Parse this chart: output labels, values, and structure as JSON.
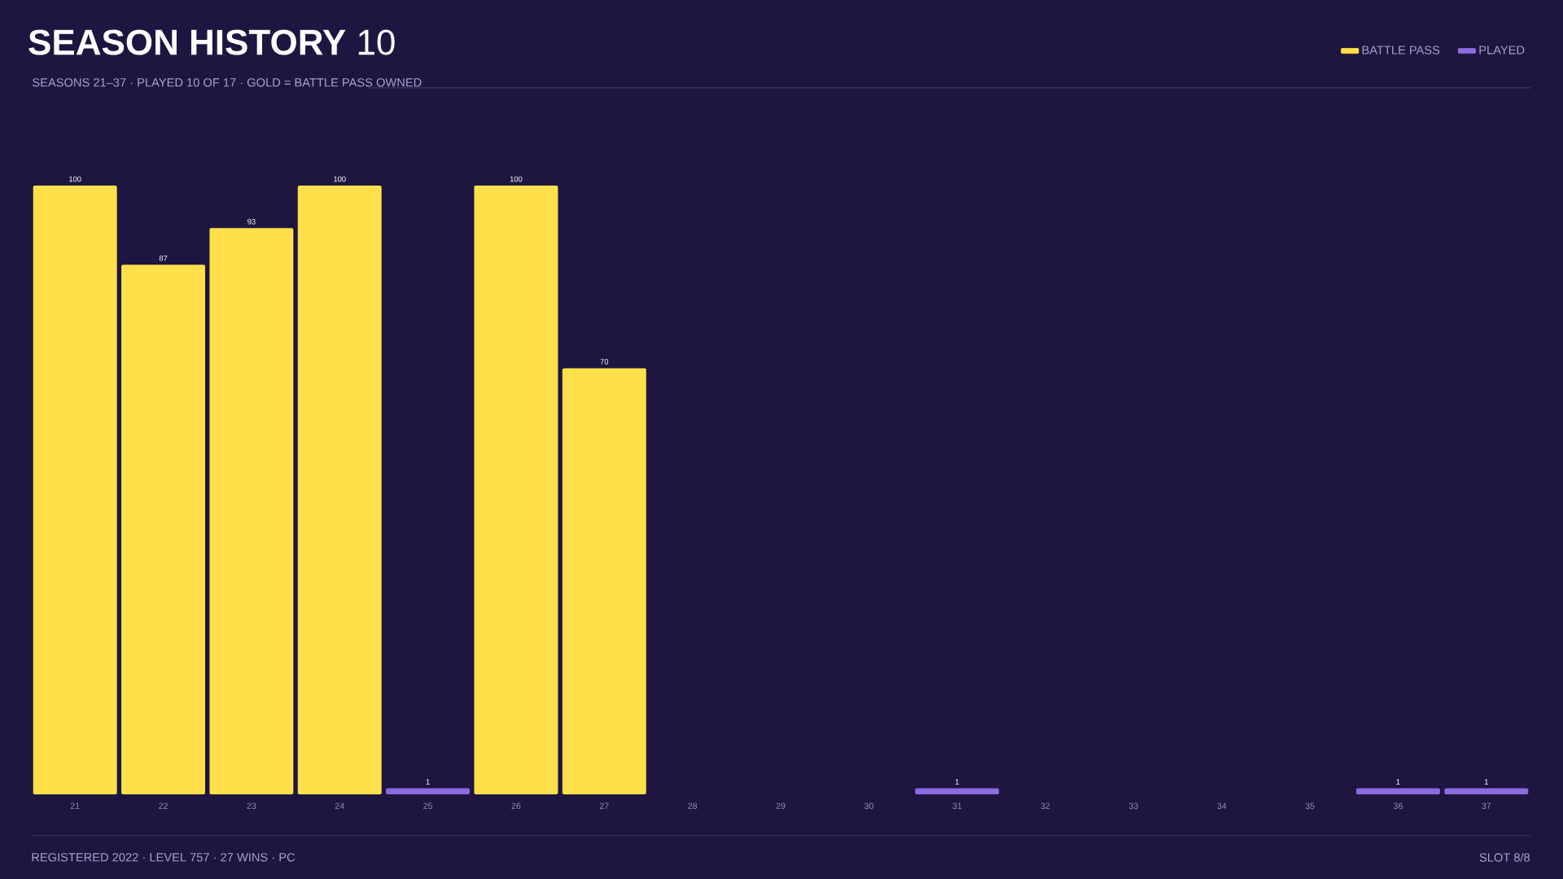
{
  "chart_data": {
    "type": "bar",
    "title": "**SEASON HISTORY** 10",
    "subtitle": "SEASONS 21–37 · PLAYED 10 OF 17 · GOLD = BATTLE PASS OWNED",
    "categories": [
      "21",
      "22",
      "23",
      "24",
      "25",
      "26",
      "27",
      "28",
      "29",
      "30",
      "31",
      "32",
      "33",
      "34",
      "35",
      "36",
      "37"
    ],
    "series": [
      {
        "name": "BATTLE PASS",
        "color": "#ffe04a",
        "values": [
          100,
          87,
          93,
          100,
          null,
          100,
          70,
          null,
          null,
          null,
          null,
          null,
          null,
          null,
          null,
          null,
          null
        ]
      },
      {
        "name": "PLAYED",
        "color": "#8c6ae0",
        "values": [
          null,
          null,
          null,
          null,
          1,
          null,
          null,
          null,
          null,
          null,
          1,
          null,
          null,
          null,
          null,
          1,
          1
        ]
      }
    ],
    "data_labels": true,
    "legend": "top right",
    "annotations": [
      "REGISTERED 2022 · LEVEL 757 · 27 WINS · PC",
      "SLOT 8/8"
    ]
  }
}
